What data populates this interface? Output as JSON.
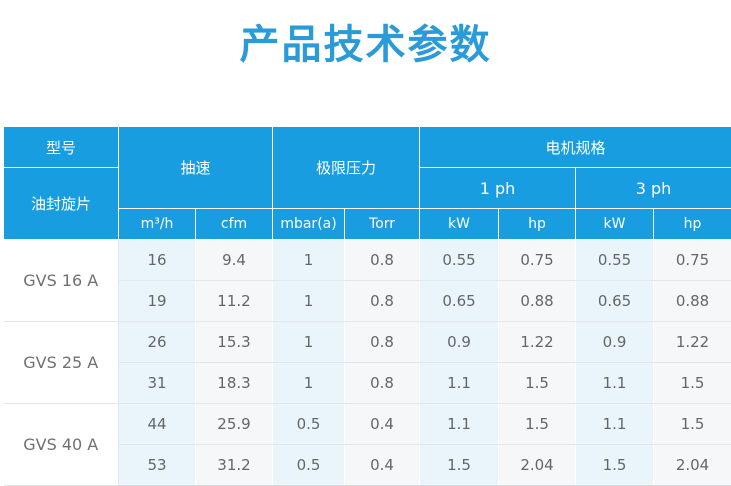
{
  "title": "产品技术参数",
  "table": {
    "model_label": "型号",
    "pump_type_label": "油封旋片",
    "speed_label": "抽速",
    "pressure_label": "极限压力",
    "motor_label": "电机规格",
    "phase_1": "1 ph",
    "phase_3": "3 ph",
    "units": [
      "m³/h",
      "cfm",
      "mbar(a)",
      "Torr",
      "kW",
      "hp",
      "kW",
      "hp"
    ],
    "groups": [
      {
        "model": "GVS 16 A",
        "rows": [
          [
            "16",
            "9.4",
            "1",
            "0.8",
            "0.55",
            "0.75",
            "0.55",
            "0.75"
          ],
          [
            "19",
            "11.2",
            "1",
            "0.8",
            "0.65",
            "0.88",
            "0.65",
            "0.88"
          ]
        ]
      },
      {
        "model": "GVS 25 A",
        "rows": [
          [
            "26",
            "15.3",
            "1",
            "0.8",
            "0.9",
            "1.22",
            "0.9",
            "1.22"
          ],
          [
            "31",
            "18.3",
            "1",
            "0.8",
            "1.1",
            "1.5",
            "1.1",
            "1.5"
          ]
        ]
      },
      {
        "model": "GVS 40 A",
        "rows": [
          [
            "44",
            "25.9",
            "0.5",
            "0.4",
            "1.1",
            "1.5",
            "1.1",
            "1.5"
          ],
          [
            "53",
            "31.2",
            "0.5",
            "0.4",
            "1.5",
            "2.04",
            "1.5",
            "2.04"
          ]
        ]
      }
    ]
  }
}
